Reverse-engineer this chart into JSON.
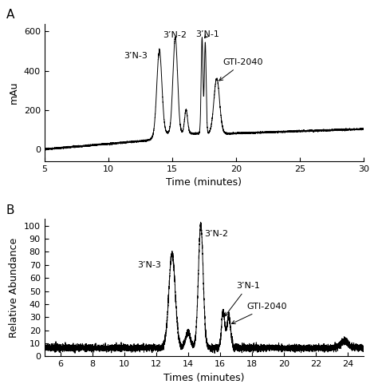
{
  "panel_A": {
    "label": "A",
    "ylabel": "mAu",
    "xlabel": "Time (minutes)",
    "xlim": [
      5,
      30
    ],
    "ylim": [
      -60,
      640
    ],
    "xticks": [
      5,
      10,
      15,
      20,
      25,
      30
    ],
    "yticks": [
      0,
      200,
      400,
      600
    ]
  },
  "panel_B": {
    "label": "B",
    "ylabel": "Relative Abundance",
    "xlabel": "Times (minutes)",
    "xlim": [
      5,
      25
    ],
    "ylim": [
      0,
      105
    ],
    "xticks": [
      6,
      8,
      10,
      12,
      14,
      16,
      18,
      20,
      22,
      24
    ],
    "yticks": [
      0,
      10,
      20,
      30,
      40,
      50,
      60,
      70,
      80,
      90,
      100
    ]
  },
  "line_color": "#000000",
  "background_color": "#ffffff",
  "fontsize_label": 9,
  "fontsize_annot": 8,
  "fontsize_panel": 11
}
